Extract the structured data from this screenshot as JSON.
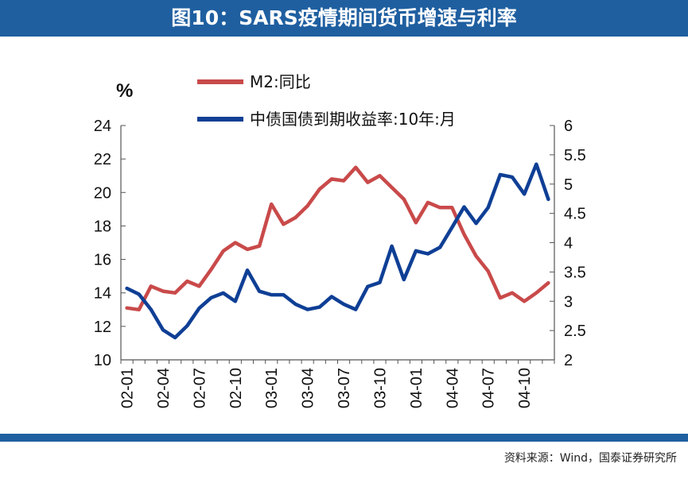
{
  "header": {
    "title": "图10：SARS疫情期间货币增速与利率"
  },
  "footer": {
    "source": "资料来源：Wind，国泰证券研究所"
  },
  "colors": {
    "header_bg": "#1f5fa0",
    "m2": "#c94a4a",
    "bond": "#0f3f95"
  },
  "chart_data": {
    "type": "line",
    "y_unit": "%",
    "grid": false,
    "legend_position": "top",
    "x": [
      "02-01",
      "02-02",
      "02-03",
      "02-04",
      "02-05",
      "02-06",
      "02-07",
      "02-08",
      "02-09",
      "02-10",
      "02-11",
      "02-12",
      "03-01",
      "03-02",
      "03-03",
      "03-04",
      "03-05",
      "03-06",
      "03-07",
      "03-08",
      "03-09",
      "03-10",
      "03-11",
      "03-12",
      "04-01",
      "04-02",
      "04-03",
      "04-04",
      "04-05",
      "04-06",
      "04-07",
      "04-08",
      "04-09",
      "04-10",
      "04-11",
      "04-12"
    ],
    "x_tick_labels": [
      "02-01",
      "02-04",
      "02-07",
      "02-10",
      "03-01",
      "03-04",
      "03-07",
      "03-10",
      "04-01",
      "04-04",
      "04-07",
      "04-10"
    ],
    "y_left": {
      "ticks": [
        "10",
        "12",
        "14",
        "16",
        "18",
        "20",
        "22",
        "24"
      ],
      "lim": [
        10,
        24
      ]
    },
    "y_right": {
      "ticks": [
        "2",
        "2.5",
        "3",
        "3.5",
        "4",
        "4.5",
        "5",
        "5.5",
        "6"
      ],
      "lim": [
        2,
        6
      ]
    },
    "series": [
      {
        "name": "M2:同比",
        "axis": "left",
        "values": [
          13.1,
          13.0,
          14.4,
          14.1,
          14.0,
          14.7,
          14.4,
          15.4,
          16.5,
          17.0,
          16.6,
          16.8,
          19.3,
          18.1,
          18.5,
          19.2,
          20.2,
          20.8,
          20.7,
          21.5,
          20.6,
          21.0,
          20.3,
          19.6,
          18.2,
          19.4,
          19.1,
          19.1,
          17.5,
          16.2,
          15.3,
          13.7,
          14.0,
          13.5,
          14.0,
          14.6
        ]
      },
      {
        "name": "中债国债到期收益率:10年:月",
        "axis": "right",
        "values": [
          3.22,
          3.12,
          2.86,
          2.51,
          2.38,
          2.58,
          2.88,
          3.06,
          3.14,
          3.0,
          3.53,
          3.17,
          3.11,
          3.11,
          2.95,
          2.86,
          2.9,
          3.08,
          2.95,
          2.86,
          3.25,
          3.32,
          3.94,
          3.37,
          3.86,
          3.81,
          3.92,
          4.26,
          4.61,
          4.33,
          4.6,
          5.16,
          5.12,
          4.83,
          5.34,
          4.74
        ]
      }
    ]
  }
}
